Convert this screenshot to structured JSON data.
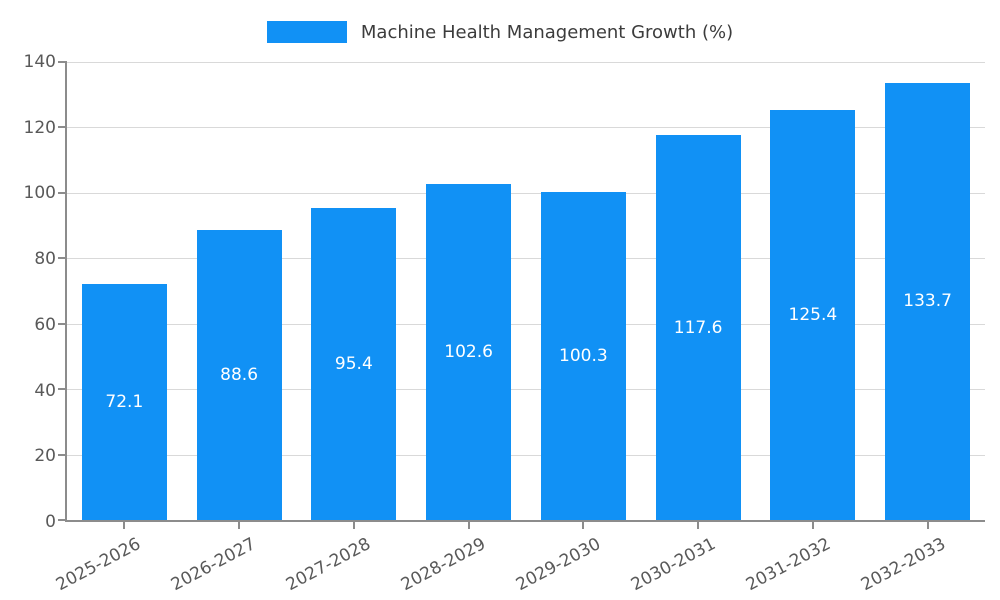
{
  "chart_data": {
    "type": "bar",
    "title": "Machine Health Management Growth (%)",
    "categories": [
      "2025-2026",
      "2026-2027",
      "2027-2028",
      "2028-2029",
      "2029-2030",
      "2030-2031",
      "2031-2032",
      "2032-2033"
    ],
    "values": [
      72.1,
      88.6,
      95.4,
      102.6,
      100.3,
      117.6,
      125.4,
      133.7
    ],
    "value_labels": [
      "72.1",
      "88.6",
      "95.4",
      "102.6",
      "100.3",
      "117.6",
      "125.4",
      "133.7"
    ],
    "xlabel": "",
    "ylabel": "",
    "ylim": [
      0,
      140
    ],
    "yticks": [
      0,
      20,
      40,
      60,
      80,
      100,
      120,
      140
    ],
    "grid": true,
    "legend_position": "top",
    "bar_color": "#1191f5",
    "bar_label_color": "#ffffff",
    "tick_label_color": "#595959",
    "title_color": "#3c3c3c"
  }
}
